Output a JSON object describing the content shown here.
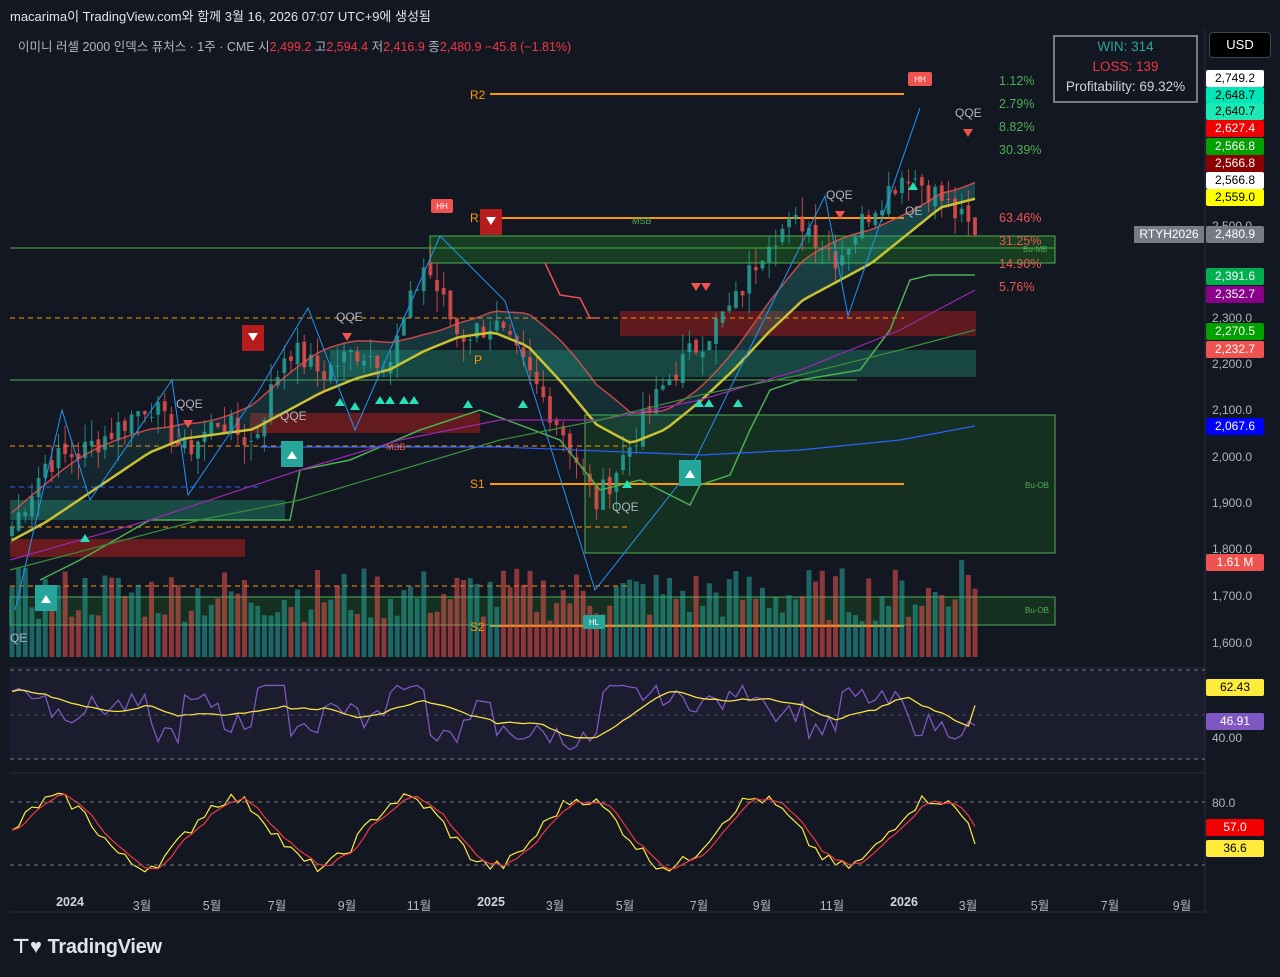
{
  "header": {
    "created_line": "macarima이 TradingView.com와 함께 3월 16, 2026 07:07 UTC+9에 생성됨",
    "symbol_desc": "이미니 러셀 2000 인덱스 퓨처스 · 1주 · CME",
    "open_label": "시",
    "open": "2,499.2",
    "high_label": "고",
    "high": "2,594.4",
    "low_label": "저",
    "low": "2,416.9",
    "close_label": "종",
    "close": "2,480.9",
    "change": "−45.8 (−1.81%)"
  },
  "currency": "USD",
  "stats": {
    "win": "WIN: 314",
    "loss": "LOSS: 139",
    "profitability": "Profitability: 69.32%"
  },
  "colors": {
    "bull": "#26a69a",
    "bear": "#ef5350",
    "ema": "#c9c232",
    "rsi": "#7e57c2",
    "bg": "#131722"
  },
  "price_badges": [
    {
      "value": "2,749.2",
      "bg": "#ffffff",
      "fg": "#000000"
    },
    {
      "value": "2,648.7",
      "bg": "#00e6b8",
      "fg": "#000000"
    },
    {
      "value": "2,640.7",
      "bg": "#1de9b6",
      "fg": "#000000"
    },
    {
      "value": "2,627.4",
      "bg": "#f00000",
      "fg": "#ffffff"
    },
    {
      "value": "2,566.8",
      "bg": "#00a000",
      "fg": "#ffffff"
    },
    {
      "value": "2,566.8",
      "bg": "#8b0000",
      "fg": "#ffffff"
    },
    {
      "value": "2,566.8",
      "bg": "#ffffff",
      "fg": "#000000"
    },
    {
      "value": "2,559.0",
      "bg": "#ffff00",
      "fg": "#000000"
    },
    {
      "value": "2,480.9",
      "bg": "#787b86",
      "fg": "#ffffff"
    },
    {
      "value": "2,391.6",
      "bg": "#00b050",
      "fg": "#ffffff"
    },
    {
      "value": "2,352.7",
      "bg": "#8b008b",
      "fg": "#ffffff"
    },
    {
      "value": "2,270.5",
      "bg": "#00a000",
      "fg": "#ffffff"
    },
    {
      "value": "2,232.7",
      "bg": "#ef5350",
      "fg": "#ffffff"
    },
    {
      "value": "2,067.6",
      "bg": "#0000ff",
      "fg": "#ffffff"
    },
    {
      "value": "1.61 M",
      "bg": "#ef5350",
      "fg": "#ffffff"
    }
  ],
  "ticker_tag": "RTYH2026",
  "price_axis": [
    "2,500.0",
    "2,300.0",
    "2,200.0",
    "2,100.0",
    "2,000.0",
    "1,900.0",
    "1,800.0",
    "1,700.0",
    "1,600.0"
  ],
  "pivots": {
    "r2": "R2",
    "r1": "R1",
    "s1": "S1",
    "s2": "S2",
    "p": "P"
  },
  "fib_pct": [
    "1.12%",
    "2.79%",
    "8.82%",
    "30.39%",
    "63.46%",
    "31.25%",
    "14.90%",
    "5.76%"
  ],
  "annotations": {
    "qqe": "QQE",
    "hh": "HH",
    "hl": "HL",
    "msb": "MSB",
    "bu_mb": "Bu-MB",
    "bu_ob": "Bu-OB",
    "qe": "QE"
  },
  "rsi_panel": {
    "ma_value": "62.43",
    "rsi_value": "46.91",
    "level": "40.00"
  },
  "stoch_panel": {
    "level": "80.0",
    "k_value": "57.0",
    "d_value": "36.6"
  },
  "x_axis": [
    "2024",
    "3월",
    "5월",
    "7월",
    "9월",
    "11월",
    "2025",
    "3월",
    "5월",
    "7월",
    "9월",
    "11월",
    "2026",
    "3월",
    "5월",
    "7월",
    "9월"
  ],
  "brand": "TradingView",
  "chart_data": {
    "type": "candlestick",
    "title": "",
    "timeframe": "1W",
    "ylim": [
      1560,
      2850
    ],
    "x": [
      "2023-11",
      "2023-12",
      "2024-01",
      "2024-02",
      "2024-03",
      "2024-04",
      "2024-05",
      "2024-06",
      "2024-07",
      "2024-08",
      "2024-09",
      "2024-10",
      "2024-11",
      "2024-12",
      "2025-01",
      "2025-02",
      "2025-03",
      "2025-04",
      "2025-05",
      "2025-06",
      "2025-07",
      "2025-08",
      "2025-09",
      "2025-10",
      "2025-11",
      "2025-12",
      "2026-01",
      "2026-02",
      "2026-03"
    ],
    "close": [
      1850,
      1990,
      2010,
      2060,
      2120,
      2010,
      2080,
      2030,
      2240,
      2180,
      2230,
      2210,
      2420,
      2260,
      2290,
      2180,
      2060,
      1900,
      2030,
      2160,
      2250,
      2330,
      2480,
      2510,
      2430,
      2540,
      2620,
      2560,
      2480.9
    ],
    "pivots": {
      "R2": 2780,
      "R1": 2520,
      "P": 2230,
      "S1": 1940,
      "S2": 1645
    },
    "ema_series": [
      1820,
      1860,
      1910,
      1960,
      2010,
      2040,
      2050,
      2060,
      2100,
      2140,
      2170,
      2190,
      2230,
      2260,
      2270,
      2240,
      2160,
      2070,
      2030,
      2060,
      2120,
      2190,
      2270,
      2340,
      2380,
      2420,
      2480,
      2540,
      2559
    ],
    "volume_last": "1.61 M",
    "rsi_last": 46.91,
    "rsi_ma_last": 62.43,
    "stoch_k_last": 57.0,
    "stoch_d_last": 36.6
  }
}
